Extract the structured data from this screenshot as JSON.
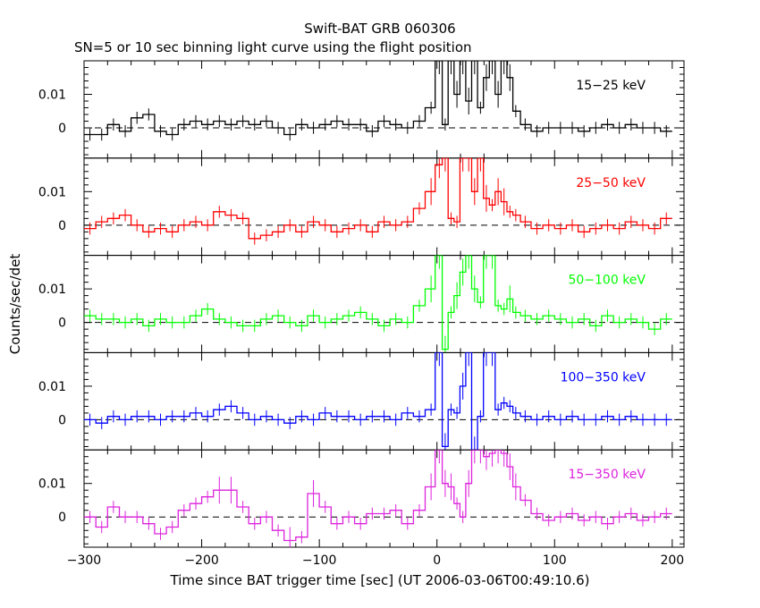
{
  "chart_data": {
    "type": "line",
    "title": "Swift-BAT GRB 060306",
    "subtitle": "SN=5 or 10 sec binning light curve using the flight position",
    "xlabel": "Time since BAT trigger time [sec] (UT 2006-03-06T00:49:10.6)",
    "ylabel": "Counts/sec/det",
    "xlim": [
      -300,
      210
    ],
    "ylim": [
      -0.009,
      0.02
    ],
    "x_ticks": [
      -300,
      -200,
      -100,
      0,
      100,
      200
    ],
    "x_tick_labels": [
      "−300",
      "−200",
      "−100",
      "0",
      "100",
      "200"
    ],
    "y_ticks": [
      0,
      0.01
    ],
    "y_tick_labels": [
      "0",
      "0.01"
    ],
    "zero_line": "dashed",
    "x": [
      -295,
      -285,
      -275,
      -265,
      -255,
      -245,
      -235,
      -225,
      -215,
      -205,
      -195,
      -185,
      -175,
      -165,
      -155,
      -145,
      -135,
      -125,
      -115,
      -105,
      -95,
      -85,
      -75,
      -65,
      -55,
      -45,
      -35,
      -25,
      -15,
      -5,
      2,
      7,
      12,
      17,
      22,
      27,
      32,
      37,
      42,
      47,
      52,
      57,
      62,
      67,
      75,
      85,
      95,
      105,
      115,
      125,
      135,
      145,
      155,
      165,
      175,
      185,
      195
    ],
    "panels": [
      {
        "name": "15−25 keV",
        "color": "#000000",
        "values": [
          -0.002,
          -0.002,
          0.001,
          -0.001,
          0.003,
          0.004,
          -0.001,
          -0.002,
          0.001,
          0.002,
          0.001,
          0.002,
          0.001,
          0.002,
          0.001,
          0.002,
          0.0,
          -0.002,
          0.001,
          0.0,
          0.001,
          0.002,
          0.001,
          0.001,
          -0.001,
          0.002,
          0.001,
          0.0,
          0.002,
          0.006,
          0.02,
          0.001,
          0.02,
          0.01,
          0.02,
          0.008,
          0.02,
          0.006,
          0.015,
          0.02,
          0.01,
          0.02,
          0.015,
          0.005,
          0.001,
          -0.001,
          0.0,
          0.0,
          0.0,
          -0.001,
          0.0,
          0.001,
          0.0,
          0.001,
          0.0,
          0.0,
          -0.001
        ]
      },
      {
        "name": "25−50 keV",
        "color": "#ff0000",
        "values": [
          -0.001,
          0.001,
          0.002,
          0.003,
          0.0,
          -0.002,
          -0.001,
          -0.002,
          0.0,
          0.001,
          0.0,
          0.004,
          0.003,
          0.002,
          -0.004,
          -0.003,
          -0.002,
          0.0,
          -0.002,
          0.001,
          0.0,
          -0.002,
          -0.001,
          0.0,
          -0.002,
          0.001,
          0.0,
          0.001,
          0.005,
          0.01,
          0.018,
          0.02,
          0.002,
          0.001,
          0.02,
          0.02,
          0.01,
          0.02,
          0.008,
          0.006,
          0.01,
          0.007,
          0.004,
          0.003,
          0.001,
          -0.001,
          0.0,
          -0.001,
          0.0,
          -0.002,
          -0.001,
          0.0,
          -0.001,
          0.001,
          0.0,
          -0.001,
          0.002
        ]
      },
      {
        "name": "50−100 keV",
        "color": "#00ff00",
        "values": [
          0.002,
          0.001,
          0.001,
          0.0,
          0.001,
          -0.001,
          0.001,
          0.0,
          0.0,
          0.002,
          0.004,
          0.001,
          0.0,
          -0.001,
          -0.001,
          0.001,
          0.002,
          0.0,
          -0.001,
          0.002,
          0.0,
          0.001,
          0.002,
          0.003,
          0.001,
          -0.001,
          0.001,
          0.0,
          0.005,
          0.01,
          0.02,
          -0.008,
          0.003,
          0.008,
          0.015,
          0.02,
          0.01,
          0.006,
          0.02,
          0.02,
          0.005,
          0.004,
          0.007,
          0.003,
          0.002,
          0.001,
          0.002,
          0.001,
          0.0,
          0.001,
          -0.001,
          0.002,
          0.0,
          0.001,
          0.0,
          -0.002,
          0.001
        ]
      },
      {
        "name": "100−350 keV",
        "color": "#0000ff",
        "values": [
          0.0,
          -0.001,
          0.001,
          0.0,
          0.001,
          0.001,
          0.0,
          0.001,
          0.001,
          0.002,
          0.001,
          0.003,
          0.004,
          0.002,
          0.0,
          0.001,
          0.0,
          -0.001,
          0.001,
          0.0,
          0.002,
          0.001,
          0.001,
          0.0,
          0.001,
          0.001,
          0.0,
          0.002,
          0.001,
          0.003,
          0.02,
          -0.008,
          0.003,
          0.002,
          0.01,
          0.02,
          -0.009,
          0.001,
          0.02,
          0.02,
          0.003,
          0.005,
          0.004,
          0.002,
          0.001,
          0.0,
          0.001,
          0.0,
          0.001,
          0.0,
          0.0,
          0.001,
          0.0,
          0.001,
          0.0,
          0.0,
          0.0
        ]
      },
      {
        "name": "15−350 keV",
        "color": "#dd22dd",
        "values": [
          0.0,
          -0.003,
          0.003,
          0.0,
          0.0,
          -0.002,
          -0.005,
          -0.003,
          0.002,
          0.004,
          0.006,
          0.008,
          0.008,
          0.003,
          -0.002,
          0.0,
          -0.004,
          -0.007,
          -0.006,
          0.007,
          0.003,
          -0.002,
          0.0,
          -0.002,
          0.001,
          0.001,
          0.002,
          -0.002,
          0.002,
          0.009,
          0.02,
          0.01,
          0.009,
          0.004,
          0.0,
          0.01,
          0.02,
          0.02,
          0.018,
          0.019,
          0.02,
          0.019,
          0.015,
          0.009,
          0.005,
          0.001,
          -0.001,
          0.0,
          0.001,
          -0.001,
          0.0,
          -0.002,
          0.0,
          0.001,
          -0.001,
          0.0,
          0.001
        ]
      }
    ]
  }
}
